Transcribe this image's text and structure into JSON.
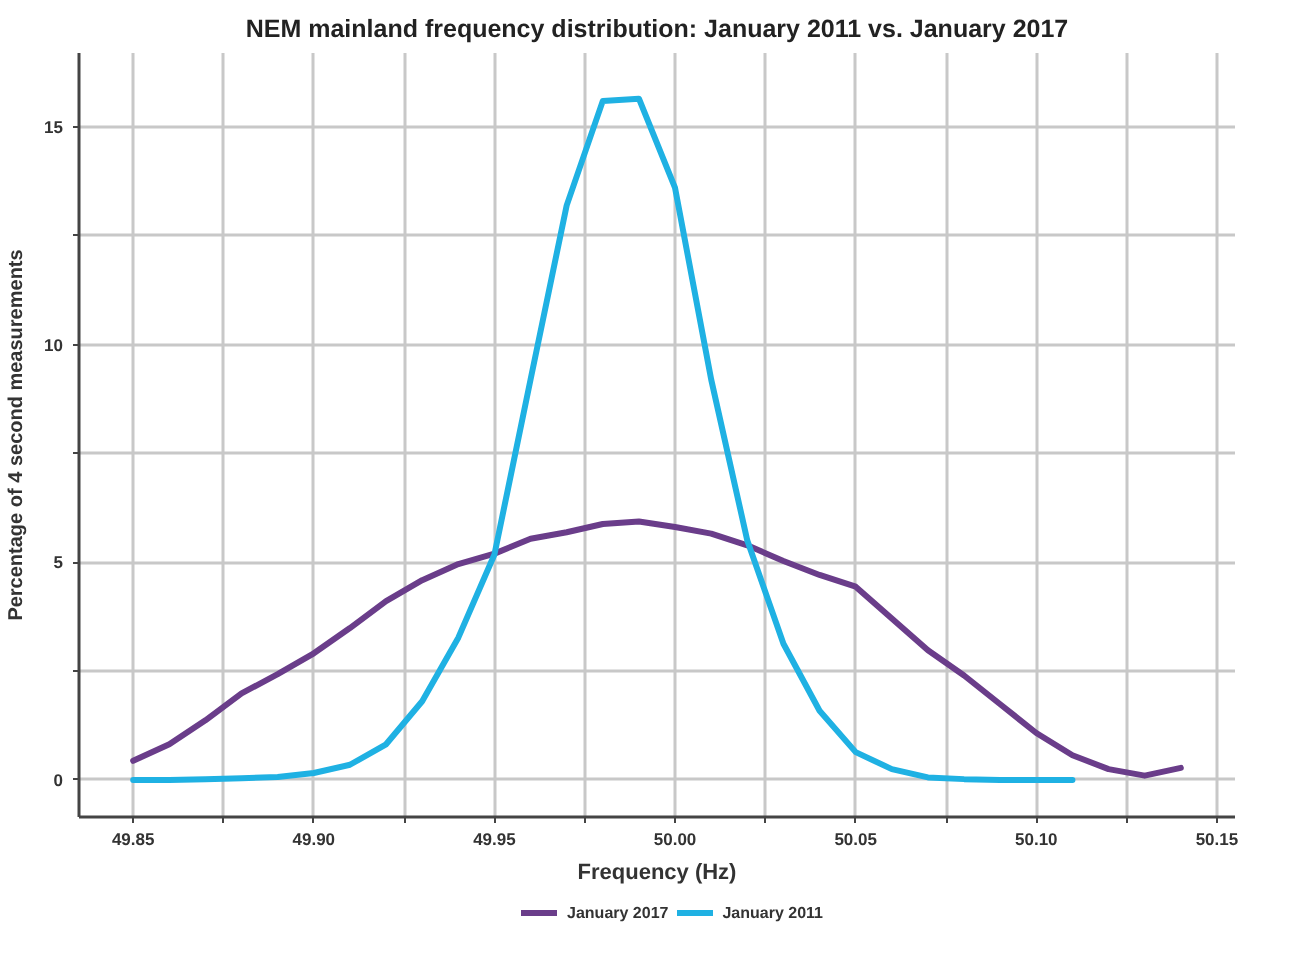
{
  "chart_data": {
    "type": "line",
    "title": "NEM mainland frequency distribution: January 2011 vs. January 2017",
    "xlabel": "Frequency (Hz)",
    "ylabel": "Percentage of 4 second measurements",
    "series": [
      {
        "name": "January 2017",
        "color": "#6a3d8a",
        "x": [
          49.85,
          49.86,
          49.87,
          49.88,
          49.89,
          49.9,
          49.91,
          49.92,
          49.93,
          49.94,
          49.95,
          49.96,
          49.97,
          49.98,
          49.99,
          50.0,
          50.01,
          50.02,
          50.03,
          50.04,
          50.05,
          50.06,
          50.07,
          50.08,
          50.09,
          50.1,
          50.11,
          50.12,
          50.13,
          50.14
        ],
        "values": [
          0.44,
          0.82,
          1.37,
          1.99,
          2.43,
          2.91,
          3.49,
          4.11,
          4.59,
          4.96,
          5.2,
          5.54,
          5.69,
          5.88,
          5.94,
          5.81,
          5.66,
          5.39,
          5.03,
          4.71,
          4.44,
          3.71,
          2.98,
          2.4,
          1.74,
          1.08,
          0.57,
          0.25,
          0.1,
          0.28
        ]
      },
      {
        "name": "January 2011",
        "color": "#1fb1e3",
        "x": [
          49.85,
          49.86,
          49.87,
          49.88,
          49.89,
          49.9,
          49.91,
          49.92,
          49.93,
          49.94,
          49.95,
          49.96,
          49.97,
          49.98,
          49.99,
          50.0,
          50.01,
          50.02,
          50.03,
          50.04,
          50.05,
          50.06,
          50.07,
          50.08,
          50.09,
          50.1,
          50.11
        ],
        "values": [
          0.0,
          0.0,
          0.02,
          0.04,
          0.07,
          0.16,
          0.35,
          0.82,
          1.81,
          3.27,
          5.18,
          9.2,
          13.2,
          15.6,
          15.65,
          13.6,
          9.2,
          5.5,
          3.13,
          1.59,
          0.64,
          0.25,
          0.06,
          0.02,
          0.0,
          0.0,
          0.0
        ]
      }
    ],
    "xlim": [
      49.835,
      50.155
    ],
    "xticks": [
      49.85,
      {
        "value": 49.875,
        "label": null
      },
      {
        "value": 49.9,
        "label": "49.90"
      },
      {
        "value": 49.925,
        "label": null
      },
      49.95,
      {
        "value": 49.975,
        "label": null
      },
      {
        "value": 50.0,
        "label": "50.00"
      },
      {
        "value": 50.025,
        "label": null
      },
      50.05,
      {
        "value": 50.075,
        "label": null
      },
      {
        "value": 50.1,
        "label": "50.10"
      },
      {
        "value": 50.125,
        "label": null
      },
      50.15
    ],
    "ylim": [
      -0.85,
      16.7
    ],
    "yticks": [
      0,
      {
        "value": 2.5,
        "label": null
      },
      5,
      {
        "value": 7.5,
        "label": null
      },
      10,
      {
        "value": 12.5,
        "label": null
      },
      15
    ],
    "grid": true,
    "legend": "bottom",
    "marker": "none",
    "line_style": "solid"
  }
}
